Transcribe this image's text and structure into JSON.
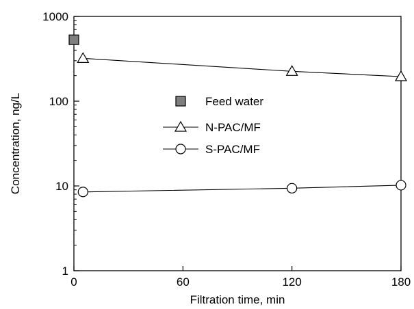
{
  "chart_data": {
    "type": "scatter",
    "title": "",
    "xlabel": "Filtration time, min",
    "ylabel": "Concentration, ng/L",
    "xlim": [
      0,
      180
    ],
    "ylim": [
      1,
      1000
    ],
    "yscale": "log",
    "x_ticks": [
      0,
      60,
      120,
      180
    ],
    "x_tick_labels": [
      "0",
      "60",
      "120",
      "180"
    ],
    "y_ticks": [
      1,
      10,
      100,
      1000
    ],
    "y_tick_labels": [
      "1",
      "10",
      "100",
      "1000"
    ],
    "grid": false,
    "legend_position": "center",
    "series": [
      {
        "name": "Feed water",
        "marker": "square-filled",
        "color": "#7f7f7f",
        "line": false,
        "x": [
          0
        ],
        "y": [
          530
        ]
      },
      {
        "name": "N-PAC/MF",
        "marker": "triangle-open",
        "color": "#000000",
        "line": true,
        "x": [
          5,
          120,
          180
        ],
        "y": [
          320,
          225,
          195
        ]
      },
      {
        "name": "S-PAC/MF",
        "marker": "circle-open",
        "color": "#000000",
        "line": true,
        "x": [
          5,
          120,
          180
        ],
        "y": [
          8.5,
          9.4,
          10.2
        ]
      }
    ]
  }
}
